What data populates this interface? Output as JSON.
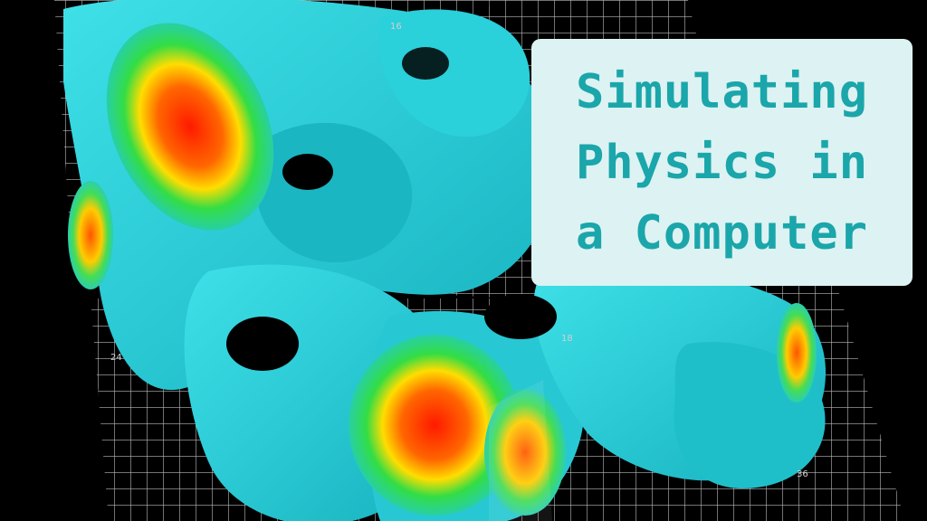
{
  "colors": {
    "background": "#000000",
    "blob": "#22c9d4",
    "hot": "#ff2a00",
    "card_background": "#ddf2f2",
    "title_text": "#1aa6aa"
  },
  "scene": {
    "description_icon": "3d-heatmap-volume-render",
    "axis_ticks": {
      "tick_16": "16",
      "tick_18": "18",
      "tick_24": "24",
      "tick_36": "36"
    }
  },
  "title_card": {
    "line1": "Simulating",
    "line2": "Physics in",
    "line3": "a Computer"
  }
}
